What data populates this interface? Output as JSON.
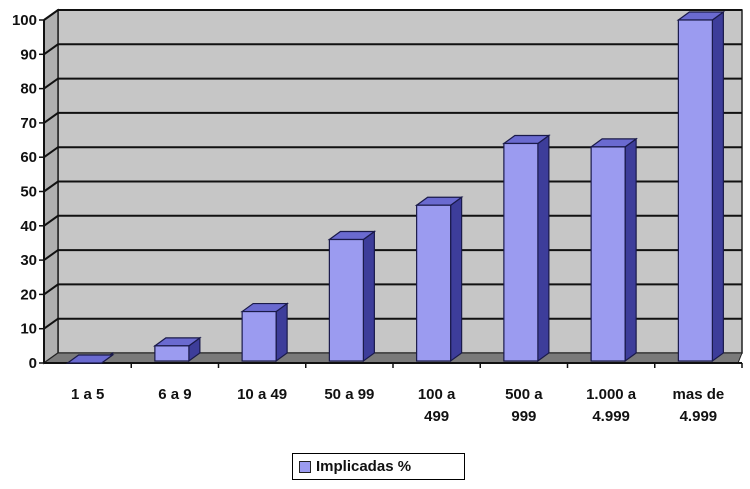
{
  "chart_data": {
    "type": "bar",
    "style": "3d-column",
    "categories": [
      [
        "1 a 5"
      ],
      [
        "6 a 9"
      ],
      [
        "10 a 49"
      ],
      [
        "50 a 99"
      ],
      [
        "100 a",
        "499"
      ],
      [
        "500 a",
        "999"
      ],
      [
        "1.000 a",
        "4.999"
      ],
      [
        "mas de",
        "4.999"
      ]
    ],
    "series": [
      {
        "name": "Implicadas %",
        "values": [
          0,
          5,
          15,
          36,
          46,
          64,
          63,
          100
        ]
      }
    ],
    "ylim": [
      0,
      100
    ],
    "yticks": [
      0,
      10,
      20,
      30,
      40,
      50,
      60,
      70,
      80,
      90,
      100
    ],
    "title": "",
    "xlabel": "",
    "ylabel": "",
    "grid": true,
    "legend_position": "bottom",
    "colors": {
      "bar_front": "#9b9bf0",
      "bar_side": "#3d3d9a",
      "bar_top": "#6a6ad0",
      "plot_wall": "#c6c6c6",
      "floor": "#7a7a7a"
    }
  },
  "legend": {
    "label": "Implicadas %"
  }
}
